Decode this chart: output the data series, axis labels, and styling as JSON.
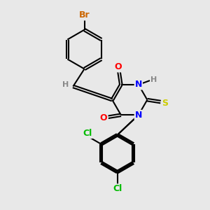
{
  "background_color": "#e8e8e8",
  "bond_color": "#000000",
  "bond_width": 1.5,
  "atom_colors": {
    "Br": "#cc6600",
    "O": "#ff0000",
    "N": "#0000ff",
    "S": "#cccc00",
    "Cl": "#00bb00",
    "H": "#888888",
    "C": "#000000"
  },
  "font_size": 9,
  "font_size_small": 8
}
